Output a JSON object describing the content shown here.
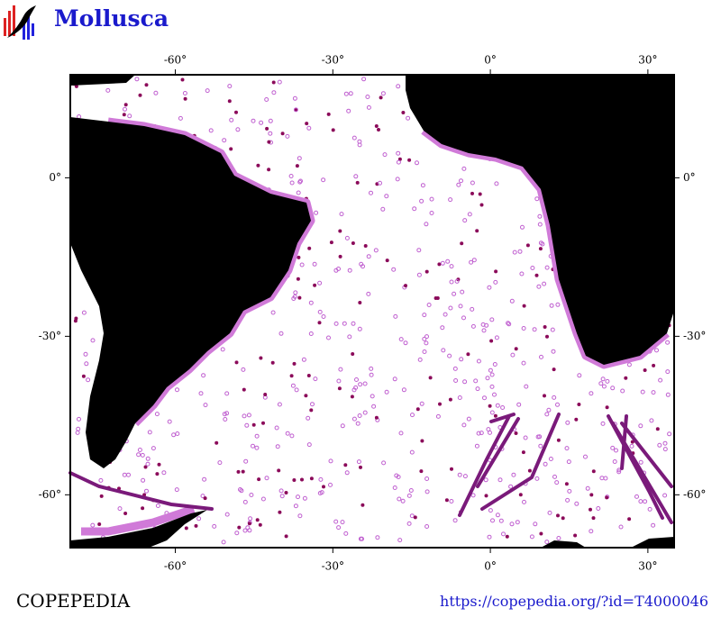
{
  "header": {
    "title": "Mollusca"
  },
  "map": {
    "xlim": [
      -80,
      35
    ],
    "ylim": [
      -70,
      19.5
    ],
    "xticks": [
      {
        "value": -60,
        "label": "-60°"
      },
      {
        "value": -30,
        "label": "-30°"
      },
      {
        "value": 0,
        "label": "0°"
      },
      {
        "value": 30,
        "label": "30°"
      }
    ],
    "yticks": [
      {
        "value": 0,
        "label": "0°"
      },
      {
        "value": -30,
        "label": "-30°"
      },
      {
        "value": -60,
        "label": "-60°"
      }
    ]
  },
  "footer": {
    "brand": "COPEPEDIA",
    "url": "https://copepedia.org/?id=T4000046"
  }
}
